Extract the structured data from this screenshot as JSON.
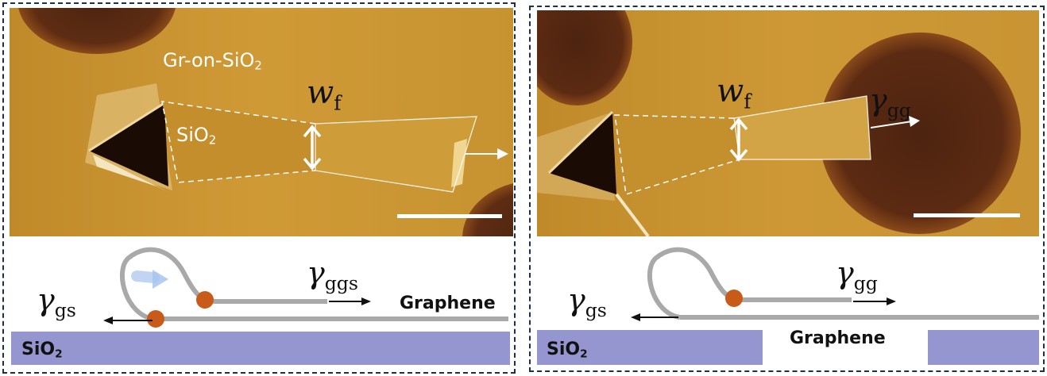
{
  "left_panel": {
    "afm_labels": {
      "gr_on_sio2_main": "Gr-on-SiO",
      "gr_on_sio2_sub": "2",
      "sio2_main": "SiO",
      "sio2_sub": "2",
      "wf_main": "w",
      "wf_sub": "f"
    },
    "schematic": {
      "gamma_ggs_main": "γ",
      "gamma_ggs_sub": "ggs",
      "gamma_gs_main": "γ",
      "gamma_gs_sub": "gs",
      "graphene": "Graphene",
      "substrate_main": "SiO",
      "substrate_sub": "2"
    }
  },
  "right_panel": {
    "afm_labels": {
      "wf_main": "w",
      "wf_sub": "f",
      "gamma_gg_main": "γ",
      "gamma_gg_sub": "gg"
    },
    "schematic": {
      "gamma_gg_main": "γ",
      "gamma_gg_sub": "gg",
      "gamma_gs_main": "γ",
      "gamma_gs_sub": "gs",
      "graphene": "Graphene",
      "substrate_main": "SiO",
      "substrate_sub": "2"
    }
  },
  "colors": {
    "afm_background": "#c8962c",
    "afm_dark": "#5a2a10",
    "substrate": "#9595cf",
    "graphene_line": "#a9a9a9",
    "pin_dot": "#c85a1a",
    "frame": "#1d2f4a"
  }
}
